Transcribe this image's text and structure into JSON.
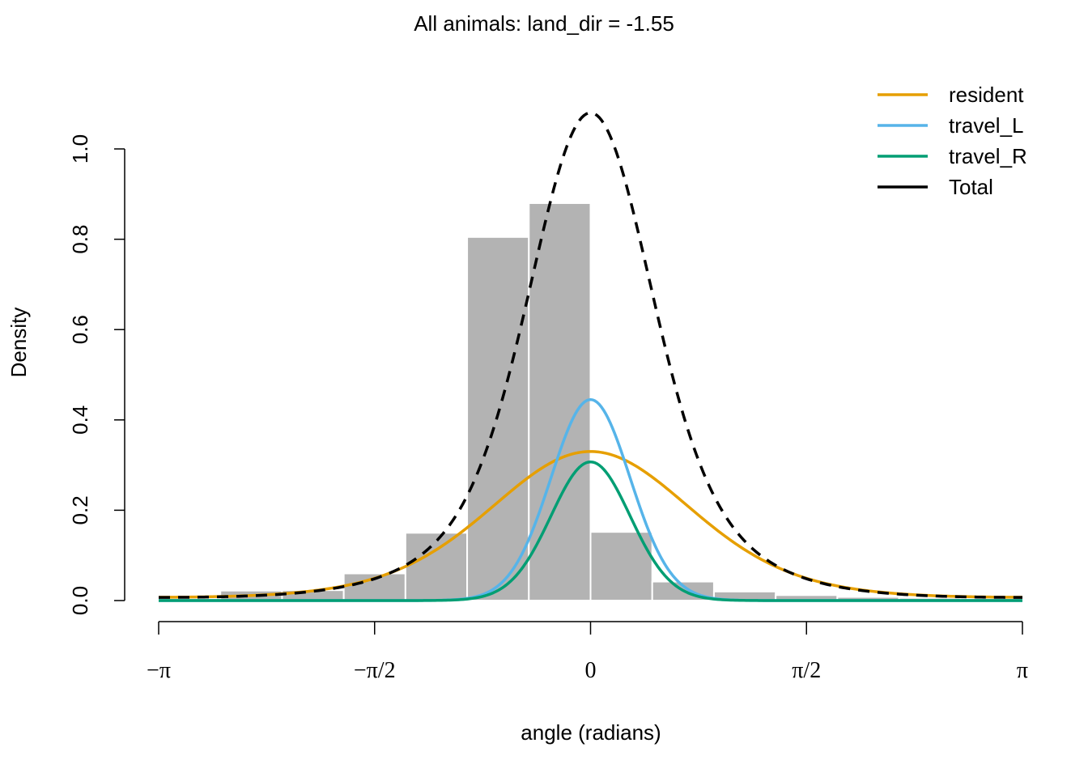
{
  "chart_data": {
    "type": "bar",
    "title": "All animals: land_dir = -1.55",
    "xlabel": "angle (radians)",
    "ylabel": "Density",
    "xlim": [
      -3.14159,
      3.14159
    ],
    "ylim": [
      0,
      1.08
    ],
    "x_ticks": [
      {
        "value": -3.14159,
        "label": "−π"
      },
      {
        "value": -1.5708,
        "label": "−π/2"
      },
      {
        "value": 0,
        "label": "0"
      },
      {
        "value": 1.5708,
        "label": "π/2"
      },
      {
        "value": 3.14159,
        "label": "π"
      }
    ],
    "y_ticks": [
      {
        "value": 0.0,
        "label": "0.0"
      },
      {
        "value": 0.2,
        "label": "0.2"
      },
      {
        "value": 0.4,
        "label": "0.4"
      },
      {
        "value": 0.6,
        "label": "0.6"
      },
      {
        "value": 0.8,
        "label": "0.8"
      },
      {
        "value": 1.0,
        "label": "1.0"
      }
    ],
    "grid": false,
    "legend_position": "top-right",
    "histogram": {
      "color": "#b3b3b3",
      "bin_edges": [
        -3.14159,
        -2.69279,
        -2.24399,
        -1.7952,
        -1.3464,
        -0.8976,
        -0.4488,
        0,
        0.4488,
        0.8976,
        1.3464,
        1.7952,
        2.24399,
        2.69279,
        3.14159
      ],
      "densities": [
        0.005,
        0.022,
        0.023,
        0.06,
        0.15,
        0.805,
        0.88,
        0.152,
        0.042,
        0.02,
        0.012,
        0.008,
        0.006,
        0.005
      ]
    },
    "series": [
      {
        "name": "resident",
        "color": "#e69f00",
        "dash": "solid",
        "peak_density": 0.33
      },
      {
        "name": "travel_L",
        "color": "#56b4e9",
        "dash": "solid",
        "peak_density": 0.445
      },
      {
        "name": "travel_R",
        "color": "#009e73",
        "dash": "solid",
        "peak_density": 0.307
      },
      {
        "name": "Total",
        "color": "#000000",
        "dash": "dashed",
        "peak_density": 1.08
      }
    ]
  }
}
